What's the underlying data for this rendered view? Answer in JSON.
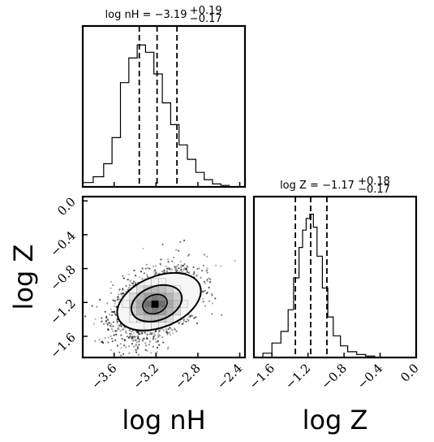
{
  "chart_data": [
    {
      "type": "histogram",
      "title": "log nH = −3.19",
      "title_sup": "+0.19",
      "title_sub": "−0.17",
      "xlim": [
        -3.9,
        -2.35
      ],
      "x_ticks": [
        -3.6,
        -3.2,
        -2.8,
        -2.4
      ],
      "quantile_lines": [
        -3.36,
        -3.19,
        -3.0
      ],
      "bin_edges": [
        -3.9,
        -3.8,
        -3.7,
        -3.62,
        -3.54,
        -3.46,
        -3.38,
        -3.3,
        -3.22,
        -3.14,
        -3.06,
        -2.98,
        -2.9,
        -2.82,
        -2.74,
        -2.66,
        -2.58,
        -2.5
      ],
      "counts": [
        0.03,
        0.07,
        0.16,
        0.34,
        0.72,
        0.89,
        0.98,
        0.93,
        0.78,
        0.58,
        0.43,
        0.29,
        0.19,
        0.1,
        0.05,
        0.02,
        0.01
      ]
    },
    {
      "type": "histogram",
      "title": "log Z = −1.17",
      "title_sup": "+0.18",
      "title_sub": "−0.17",
      "xlim": [
        -1.8,
        0.0
      ],
      "x_ticks": [
        -1.6,
        -1.2,
        -0.8,
        -0.4,
        0.0
      ],
      "x_tick_labels": [
        "−1.6",
        "−1.2",
        "−0.8",
        "−0.4",
        "0.0"
      ],
      "quantile_lines": [
        -1.34,
        -1.17,
        -0.99
      ],
      "bin_edges": [
        -1.7,
        -1.6,
        -1.5,
        -1.42,
        -1.36,
        -1.3,
        -1.26,
        -1.22,
        -1.18,
        -1.14,
        -1.1,
        -1.04,
        -0.98,
        -0.92,
        -0.84,
        -0.76,
        -0.66,
        -0.56,
        -0.46
      ],
      "counts": [
        0.03,
        0.1,
        0.18,
        0.33,
        0.55,
        0.76,
        0.88,
        0.96,
        0.99,
        0.9,
        0.7,
        0.48,
        0.28,
        0.15,
        0.08,
        0.04,
        0.02,
        0.01
      ]
    },
    {
      "type": "scatter",
      "xlim": [
        -3.9,
        -2.35
      ],
      "ylim": [
        -1.85,
        0.05
      ],
      "x_ticks": [
        -3.6,
        -3.2,
        -2.8,
        -2.4
      ],
      "x_tick_labels": [
        "−3.6",
        "−3.2",
        "−2.8",
        "−2.4"
      ],
      "y_ticks": [
        0.0,
        -0.4,
        -0.8,
        -1.2,
        -1.6
      ],
      "y_tick_labels": [
        "0.0",
        "−0.4",
        "−0.8",
        "−1.2",
        "−1.6"
      ],
      "xlabel": "log nH",
      "ylabel": "log Z",
      "center": [
        -3.21,
        -1.22
      ],
      "contours": [
        {
          "level": "inner",
          "rx": 0.12,
          "ry": 0.11,
          "angle": 20
        },
        {
          "level": "middle",
          "rx": 0.25,
          "ry": 0.2,
          "angle": 20
        },
        {
          "level": "outer",
          "rx": 0.42,
          "ry": 0.3,
          "angle": 22
        }
      ]
    }
  ],
  "colors": {
    "ink": "#000000",
    "point_gray": "#555555",
    "bg": "#ffffff"
  }
}
